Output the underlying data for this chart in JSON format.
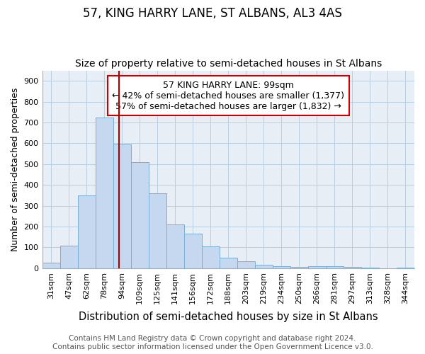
{
  "title": "57, KING HARRY LANE, ST ALBANS, AL3 4AS",
  "subtitle": "Size of property relative to semi-detached houses in St Albans",
  "xlabel": "Distribution of semi-detached houses by size in St Albans",
  "ylabel": "Number of semi-detached properties",
  "footer_line1": "Contains HM Land Registry data © Crown copyright and database right 2024.",
  "footer_line2": "Contains public sector information licensed under the Open Government Licence v3.0.",
  "categories": [
    "31sqm",
    "47sqm",
    "62sqm",
    "78sqm",
    "94sqm",
    "109sqm",
    "125sqm",
    "141sqm",
    "156sqm",
    "172sqm",
    "188sqm",
    "203sqm",
    "219sqm",
    "234sqm",
    "250sqm",
    "266sqm",
    "281sqm",
    "297sqm",
    "313sqm",
    "328sqm",
    "344sqm"
  ],
  "values": [
    28,
    108,
    350,
    725,
    595,
    510,
    360,
    210,
    165,
    105,
    50,
    33,
    18,
    10,
    8,
    10,
    10,
    7,
    3,
    0,
    3
  ],
  "bar_fill_color": "#c5d8ef",
  "bar_edge_color": "#7aaed4",
  "property_line_color": "#aa0000",
  "annotation_text_line1": "57 KING HARRY LANE: 99sqm",
  "annotation_text_line2": "← 42% of semi-detached houses are smaller (1,377)",
  "annotation_text_line3": "57% of semi-detached houses are larger (1,832) →",
  "annotation_box_facecolor": "#ffffff",
  "annotation_box_edgecolor": "#cc0000",
  "ylim": [
    0,
    950
  ],
  "yticks": [
    0,
    100,
    200,
    300,
    400,
    500,
    600,
    700,
    800,
    900
  ],
  "title_fontsize": 12,
  "subtitle_fontsize": 10,
  "xlabel_fontsize": 10.5,
  "ylabel_fontsize": 9,
  "tick_fontsize": 8,
  "annotation_fontsize": 9,
  "footer_fontsize": 7.5,
  "fig_bg_color": "#ffffff",
  "plot_bg_color": "#e8eef5"
}
